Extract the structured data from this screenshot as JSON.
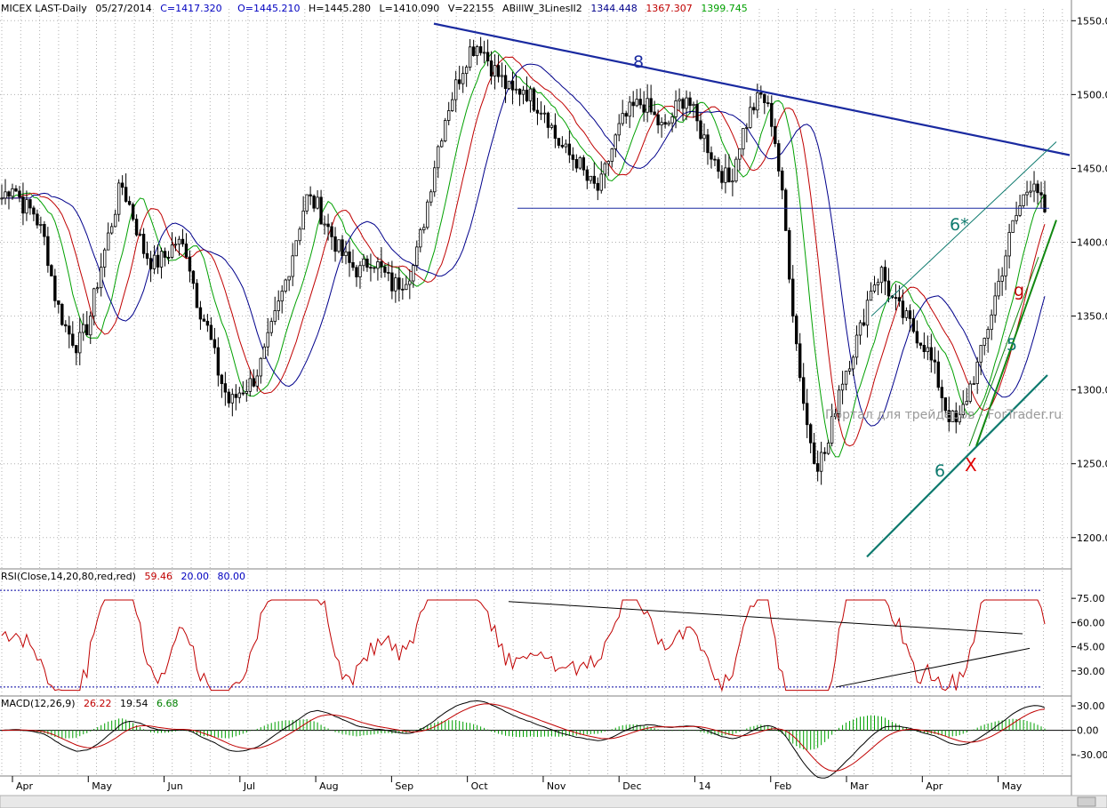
{
  "header": {
    "symbol": "MICEX LAST-Daily",
    "date": "05/27/2014",
    "close": "C=1417.320",
    "open": "O=1445.210",
    "high": "H=1445.280",
    "low": "L=1410.090",
    "volume": "V=22155",
    "indicator": "ABillW_3LinesII2",
    "ind_v1": "1344.448",
    "ind_v2": "1367.307",
    "ind_v3": "1399.745"
  },
  "rsi_header": {
    "label": "RSI(Close,14,20,80,red,red)",
    "value": "59.46",
    "lower": "20.00",
    "upper": "80.00"
  },
  "macd_header": {
    "label": "MACD(12,26,9)",
    "macd": "26.22",
    "signal": "19.54",
    "hist": "6.68"
  },
  "watermark": "Портал для трейдеров - ForTrader.ru",
  "annotations": {
    "eight": "8",
    "six_star": "6*",
    "g": "g",
    "five": "5",
    "six": "6",
    "x": "X"
  },
  "colors": {
    "candles": "#000000",
    "green_ma": "#00a000",
    "red_ma": "#c00000",
    "blue_ma": "#00008b",
    "trend_blue": "#1a2aa0",
    "trend_teal": "#0e7a6e",
    "trend_green": "#118811",
    "rsi": "#c00000",
    "grid": "#b0b0b0"
  },
  "chart_data": [
    {
      "type": "candlestick",
      "title": "MICEX LAST-Daily",
      "y_ticks": [
        1550,
        1500,
        1450,
        1400,
        1350,
        1300,
        1250,
        1200
      ],
      "y_tick_labels": [
        "1550.00",
        "1500.00",
        "1450.00",
        "1400.00",
        "1350.00",
        "1300.00",
        "1250.00",
        "1200.00"
      ],
      "ylim": [
        1180,
        1555
      ],
      "x_labels": [
        "Apr",
        "May",
        "Jun",
        "Jul",
        "Aug",
        "Sep",
        "Oct",
        "Nov",
        "Dec",
        "14",
        "Feb",
        "Mar",
        "Apr",
        "May"
      ],
      "approx_close_path": [
        1430,
        1440,
        1425,
        1420,
        1400,
        1360,
        1340,
        1330,
        1345,
        1380,
        1410,
        1440,
        1420,
        1395,
        1385,
        1390,
        1400,
        1395,
        1360,
        1340,
        1310,
        1290,
        1300,
        1305,
        1320,
        1345,
        1370,
        1400,
        1430,
        1425,
        1410,
        1395,
        1385,
        1380,
        1390,
        1380,
        1370,
        1375,
        1385,
        1420,
        1460,
        1490,
        1510,
        1530,
        1535,
        1520,
        1510,
        1500,
        1505,
        1495,
        1490,
        1470,
        1460,
        1455,
        1440,
        1435,
        1460,
        1480,
        1490,
        1495,
        1485,
        1475,
        1490,
        1500,
        1480,
        1465,
        1450,
        1440,
        1470,
        1490,
        1500,
        1480,
        1420,
        1340,
        1280,
        1250,
        1260,
        1300,
        1320,
        1340,
        1370,
        1380,
        1360,
        1350,
        1340,
        1330,
        1310,
        1285,
        1275,
        1300,
        1320,
        1350,
        1380,
        1410,
        1430,
        1445,
        1417
      ],
      "series": [
        {
          "name": "ABillW_3LinesII2",
          "last": 1344.448
        },
        {
          "name": "ABillW_3LinesII2",
          "last": 1367.307
        },
        {
          "name": "ABillW_3LinesII2",
          "last": 1399.745
        }
      ]
    },
    {
      "type": "line",
      "title": "RSI(Close,14,20,80,red,red)",
      "y_ticks": [
        75,
        60,
        45,
        30
      ],
      "y_tick_labels": [
        "75.00",
        "60.00",
        "45.00",
        "30.00"
      ],
      "ylim": [
        15,
        85
      ],
      "levels": [
        20,
        80
      ],
      "last": 59.46
    },
    {
      "type": "line",
      "title": "MACD(12,26,9)",
      "y_ticks": [
        30,
        0,
        -30
      ],
      "y_tick_labels": [
        "30.00",
        "0.00",
        "-30.00"
      ],
      "ylim": [
        -55,
        40
      ],
      "macd_last": 26.22,
      "signal_last": 19.54,
      "hist_last": 6.68
    }
  ]
}
